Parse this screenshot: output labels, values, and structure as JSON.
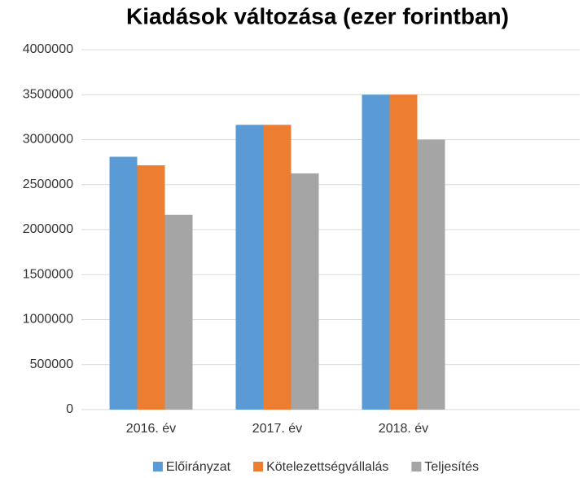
{
  "chart_data": {
    "type": "bar",
    "title": "Kiadások változása (ezer forintban)",
    "categories": [
      "2016. év",
      "2017. év",
      "2018. év",
      null
    ],
    "series": [
      {
        "name": "Előirányzat",
        "color": "#5b9bd5",
        "values": [
          2810000,
          3165000,
          3500000,
          null
        ]
      },
      {
        "name": "Kötelezettségvállalás",
        "color": "#ed7d31",
        "values": [
          2715000,
          3165000,
          3500000,
          null
        ]
      },
      {
        "name": "Teljesítés",
        "color": "#a5a5a5",
        "values": [
          2165000,
          2625000,
          3000000,
          null
        ]
      }
    ],
    "ylim": [
      0,
      4000000
    ],
    "yticks": [
      0,
      500000,
      1000000,
      1500000,
      2000000,
      2500000,
      3000000,
      3500000,
      4000000
    ],
    "grid": true,
    "legend": "bottom"
  }
}
